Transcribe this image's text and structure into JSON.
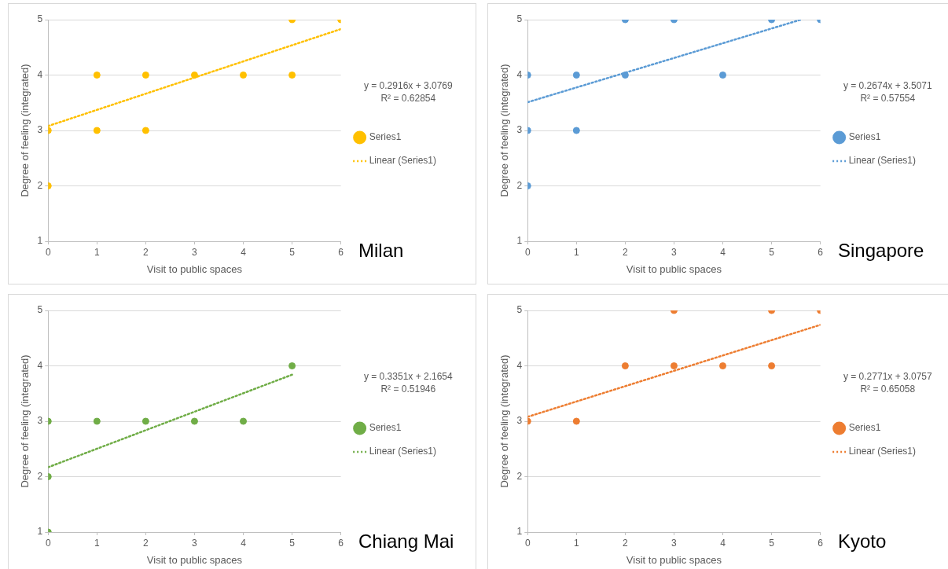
{
  "chart_data": [
    {
      "type": "scatter",
      "xlabel": "Visit to public spaces",
      "ylabel": "Degree of feeling (integrated)",
      "annotations": [
        "Milan",
        "y = 0.2916x + 3.0769",
        "R² = 0.62854"
      ],
      "xlim": [
        0,
        6
      ],
      "xticks": [
        0,
        1,
        2,
        3,
        4,
        5,
        6
      ],
      "ylim": [
        1,
        5
      ],
      "yticks": [
        1,
        2,
        3,
        4,
        5
      ],
      "grid": "y",
      "legend": "right",
      "marker": "circle",
      "series": [
        {
          "name": "Series1",
          "color": "#ffc000",
          "x": [
            0,
            0,
            1,
            1,
            2,
            2,
            3,
            4,
            5,
            5,
            6
          ],
          "values": [
            3,
            2,
            4,
            3,
            4,
            3,
            4,
            4,
            5,
            4,
            5
          ]
        },
        {
          "name": "Linear (Series1)",
          "type": "line",
          "color": "#ffc000",
          "line_style": "dotted",
          "marker": "none",
          "x": [
            0,
            6
          ],
          "values": [
            3.08,
            4.83
          ]
        }
      ]
    },
    {
      "type": "scatter",
      "xlabel": "Visit to public spaces",
      "ylabel": "Degree of feeling (integrated)",
      "annotations": [
        "Singapore",
        "y = 0.2674x + 3.5071",
        "R² = 0.57554"
      ],
      "xlim": [
        0,
        6
      ],
      "xticks": [
        0,
        1,
        2,
        3,
        4,
        5,
        6
      ],
      "ylim": [
        1,
        5
      ],
      "yticks": [
        1,
        2,
        3,
        4,
        5
      ],
      "grid": "y",
      "legend": "right",
      "marker": "circle",
      "series": [
        {
          "name": "Series1",
          "color": "#5b9bd5",
          "x": [
            0,
            0,
            0,
            1,
            1,
            2,
            2,
            3,
            4,
            5,
            6
          ],
          "values": [
            4,
            3,
            2,
            4,
            3,
            5,
            4,
            5,
            4,
            5,
            5
          ]
        },
        {
          "name": "Linear (Series1)",
          "type": "line",
          "color": "#5b9bd5",
          "line_style": "dotted",
          "marker": "none",
          "x": [
            0,
            5.6
          ],
          "values": [
            3.51,
            5.0
          ]
        }
      ]
    },
    {
      "type": "scatter",
      "xlabel": "Visit to public spaces",
      "ylabel": "Degree of feeling (integrated)",
      "annotations": [
        "Chiang Mai",
        "y = 0.3351x + 2.1654",
        "R² = 0.51946"
      ],
      "xlim": [
        0,
        6
      ],
      "xticks": [
        0,
        1,
        2,
        3,
        4,
        5,
        6
      ],
      "ylim": [
        1,
        5
      ],
      "yticks": [
        1,
        2,
        3,
        4,
        5
      ],
      "grid": "y",
      "legend": "right",
      "marker": "circle",
      "series": [
        {
          "name": "Series1",
          "color": "#70ad47",
          "x": [
            0,
            0,
            0,
            1,
            2,
            3,
            4,
            5
          ],
          "values": [
            3,
            2,
            1,
            3,
            3,
            3,
            3,
            4
          ]
        },
        {
          "name": "Linear (Series1)",
          "type": "line",
          "color": "#70ad47",
          "line_style": "dotted",
          "marker": "none",
          "x": [
            0,
            5
          ],
          "values": [
            2.17,
            3.84
          ]
        }
      ]
    },
    {
      "type": "scatter",
      "xlabel": "Visit to public spaces",
      "ylabel": "Degree of feeling (integrated)",
      "annotations": [
        "Kyoto",
        "y = 0.2771x + 3.0757",
        "R² = 0.65058"
      ],
      "xlim": [
        0,
        6
      ],
      "xticks": [
        0,
        1,
        2,
        3,
        4,
        5,
        6
      ],
      "ylim": [
        1,
        5
      ],
      "yticks": [
        1,
        2,
        3,
        4,
        5
      ],
      "grid": "y",
      "legend": "right",
      "marker": "circle",
      "series": [
        {
          "name": "Series1",
          "color": "#ed7d31",
          "x": [
            0,
            1,
            2,
            3,
            3,
            4,
            5,
            5,
            6
          ],
          "values": [
            3,
            3,
            4,
            5,
            4,
            4,
            5,
            4,
            5
          ]
        },
        {
          "name": "Linear (Series1)",
          "type": "line",
          "color": "#ed7d31",
          "line_style": "dotted",
          "marker": "none",
          "x": [
            0,
            6
          ],
          "values": [
            3.08,
            4.74
          ]
        }
      ]
    }
  ]
}
